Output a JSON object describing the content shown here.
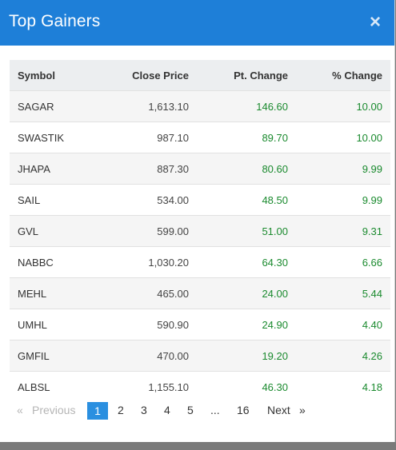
{
  "modal": {
    "title": "Top Gainers",
    "close_icon": "×"
  },
  "table": {
    "headers": [
      "Symbol",
      "Close Price",
      "Pt. Change",
      "% Change"
    ],
    "rows": [
      [
        "SAGAR",
        "1,613.10",
        "146.60",
        "10.00"
      ],
      [
        "SWASTIK",
        "987.10",
        "89.70",
        "10.00"
      ],
      [
        "JHAPA",
        "887.30",
        "80.60",
        "9.99"
      ],
      [
        "SAIL",
        "534.00",
        "48.50",
        "9.99"
      ],
      [
        "GVL",
        "599.00",
        "51.00",
        "9.31"
      ],
      [
        "NABBC",
        "1,030.20",
        "64.30",
        "6.66"
      ],
      [
        "MEHL",
        "465.00",
        "24.00",
        "5.44"
      ],
      [
        "UMHL",
        "590.90",
        "24.90",
        "4.40"
      ],
      [
        "GMFIL",
        "470.00",
        "19.20",
        "4.26"
      ],
      [
        "ALBSL",
        "1,155.10",
        "46.30",
        "4.18"
      ]
    ]
  },
  "pagination": {
    "prev_arrow": "«",
    "prev_label": "Previous",
    "pages": [
      "1",
      "2",
      "3",
      "4",
      "5"
    ],
    "ellipsis": "...",
    "last_page": "16",
    "next_label": "Next",
    "next_arrow": "»",
    "current_page": "1"
  },
  "colors": {
    "header_bg": "#1e7fd8",
    "positive": "#1a8a2e",
    "active_page": "#2a8fe0"
  }
}
